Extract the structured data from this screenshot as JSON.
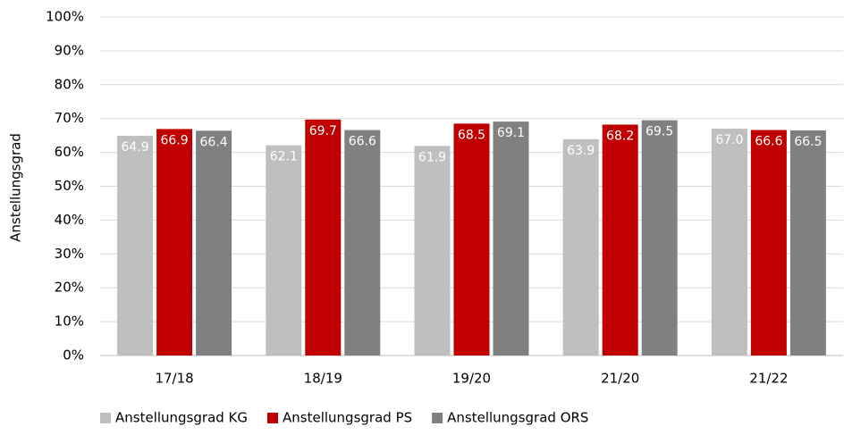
{
  "chart_data": {
    "type": "bar",
    "y_label": "Anstellungsgrad",
    "categories": [
      "17/18",
      "18/19",
      "19/20",
      "21/20",
      "21/22"
    ],
    "series": [
      {
        "name": "Anstellungsgrad KG",
        "color": "#bfbfbf",
        "values": [
          64.9,
          62.1,
          61.9,
          63.9,
          67.0
        ],
        "value_labels": [
          "64.9",
          "62.1",
          "61.9",
          "63.9",
          "67.0"
        ]
      },
      {
        "name": "Anstellungsgrad PS",
        "color": "#c00000",
        "values": [
          66.9,
          69.7,
          68.5,
          68.2,
          66.6
        ],
        "value_labels": [
          "66.9",
          "69.7",
          "68.5",
          "68.2",
          "66.6"
        ]
      },
      {
        "name": "Anstellungsgrad ORS",
        "color": "#808080",
        "values": [
          66.4,
          66.6,
          69.1,
          69.5,
          66.5
        ],
        "value_labels": [
          "66.4",
          "66.6",
          "69.1",
          "69.5",
          "66.5"
        ]
      }
    ],
    "ylim": [
      0,
      100
    ],
    "yticks": [
      {
        "value": 0,
        "label": "0%"
      },
      {
        "value": 10,
        "label": "10%"
      },
      {
        "value": 20,
        "label": "20%"
      },
      {
        "value": 30,
        "label": "30%"
      },
      {
        "value": 40,
        "label": "40%"
      },
      {
        "value": 50,
        "label": "50%"
      },
      {
        "value": 60,
        "label": "60%"
      },
      {
        "value": 70,
        "label": "70%"
      },
      {
        "value": 80,
        "label": "80%"
      },
      {
        "value": 90,
        "label": "90%"
      },
      {
        "value": 100,
        "label": "100%"
      }
    ],
    "grid": true,
    "legend": "bottom"
  }
}
